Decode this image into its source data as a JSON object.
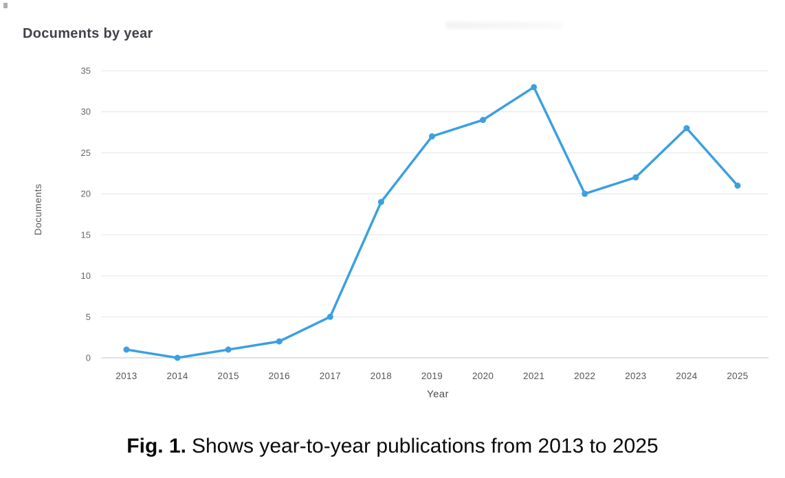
{
  "page": {
    "background": "#ffffff"
  },
  "chart_data": {
    "type": "line",
    "title": "Documents by year",
    "xlabel": "Year",
    "ylabel": "Documents",
    "categories": [
      "2013",
      "2014",
      "2015",
      "2016",
      "2017",
      "2018",
      "2019",
      "2020",
      "2021",
      "2022",
      "2023",
      "2024",
      "2025"
    ],
    "values": [
      1,
      0,
      1,
      2,
      5,
      19,
      27,
      29,
      33,
      20,
      22,
      28,
      21
    ],
    "yticks": [
      0,
      5,
      10,
      15,
      20,
      25,
      30,
      35
    ],
    "ylim": [
      0,
      35
    ],
    "grid": true,
    "legend": "none",
    "line_color": "#3aa0e0",
    "gridline_color": "#eaeaec",
    "baseline_color": "#d2d2d6",
    "tick_color": "#666666",
    "xtick_color": "#555555"
  },
  "caption": {
    "prefix": "Fig. 1.",
    "text": "Shows year-to-year publications from 2013 to 2025"
  }
}
